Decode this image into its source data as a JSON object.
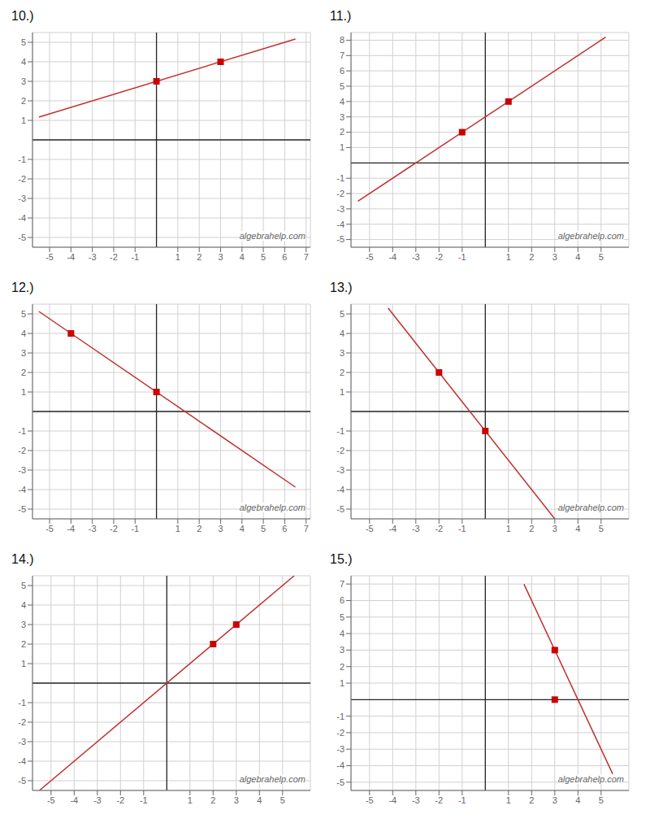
{
  "chart_data": [
    {
      "type": "line",
      "title": "10.)",
      "annotation": "algebrahelp.com",
      "grid": true,
      "xlim": [
        -5.8,
        7.2
      ],
      "ylim": [
        -5.5,
        5.5
      ],
      "xticks": [
        -5,
        -4,
        -3,
        -2,
        -1,
        1,
        2,
        3,
        4,
        5,
        6,
        7
      ],
      "yticks": [
        -5,
        -4,
        -3,
        -2,
        -1,
        1,
        2,
        3,
        4,
        5
      ],
      "series": [
        {
          "type": "line",
          "color": "#c03030",
          "x": [
            -5.5,
            6.5
          ],
          "values": [
            1.16685,
            5.16645
          ]
        },
        {
          "type": "scatter",
          "color": "#cc0000",
          "marker": "square",
          "x": [
            0,
            3
          ],
          "values": [
            3,
            4
          ]
        }
      ]
    },
    {
      "type": "line",
      "title": "11.)",
      "annotation": "algebrahelp.com",
      "grid": true,
      "xlim": [
        -5.8,
        6.2
      ],
      "ylim": [
        -5.5,
        8.5
      ],
      "xticks": [
        -5,
        -4,
        -3,
        -2,
        -1,
        1,
        2,
        3,
        4,
        5
      ],
      "yticks": [
        -5,
        -4,
        -3,
        -2,
        -1,
        1,
        2,
        3,
        4,
        5,
        6,
        7,
        8
      ],
      "series": [
        {
          "type": "line",
          "color": "#c03030",
          "x": [
            -5.5,
            5.2
          ],
          "values": [
            -2.5,
            8.2
          ]
        },
        {
          "type": "scatter",
          "color": "#cc0000",
          "marker": "square",
          "x": [
            -1,
            1
          ],
          "values": [
            2,
            4
          ]
        }
      ]
    },
    {
      "type": "line",
      "title": "12.)",
      "annotation": "algebrahelp.com",
      "grid": true,
      "xlim": [
        -5.8,
        7.2
      ],
      "ylim": [
        -5.5,
        5.5
      ],
      "xticks": [
        -5,
        -4,
        -3,
        -2,
        -1,
        1,
        2,
        3,
        4,
        5,
        6,
        7
      ],
      "yticks": [
        -5,
        -4,
        -3,
        -2,
        -1,
        1,
        2,
        3,
        4,
        5
      ],
      "series": [
        {
          "type": "line",
          "color": "#c03030",
          "x": [
            -5.5,
            6.5
          ],
          "values": [
            5.125,
            -3.875
          ]
        },
        {
          "type": "scatter",
          "color": "#cc0000",
          "marker": "square",
          "x": [
            -4,
            0
          ],
          "values": [
            4,
            1
          ]
        }
      ]
    },
    {
      "type": "line",
      "title": "13.)",
      "annotation": "algebrahelp.com",
      "grid": true,
      "xlim": [
        -5.8,
        6.2
      ],
      "ylim": [
        -5.5,
        5.5
      ],
      "xticks": [
        -5,
        -4,
        -3,
        -2,
        -1,
        1,
        2,
        3,
        4,
        5
      ],
      "yticks": [
        -5,
        -4,
        -3,
        -2,
        -1,
        1,
        2,
        3,
        4,
        5
      ],
      "series": [
        {
          "type": "line",
          "color": "#c03030",
          "x": [
            -4.2,
            3.0
          ],
          "values": [
            5.3,
            -5.5
          ]
        },
        {
          "type": "scatter",
          "color": "#cc0000",
          "marker": "square",
          "x": [
            -2,
            0
          ],
          "values": [
            2,
            -1
          ]
        }
      ]
    },
    {
      "type": "line",
      "title": "14.)",
      "annotation": "algebrahelp.com",
      "grid": true,
      "xlim": [
        -5.8,
        6.2
      ],
      "ylim": [
        -5.5,
        5.5
      ],
      "xticks": [
        -5,
        -4,
        -3,
        -2,
        -1,
        1,
        2,
        3,
        4,
        5
      ],
      "yticks": [
        -5,
        -4,
        -3,
        -2,
        -1,
        1,
        2,
        3,
        4,
        5
      ],
      "series": [
        {
          "type": "line",
          "color": "#c03030",
          "x": [
            -5.5,
            5.5
          ],
          "values": [
            -5.5,
            5.5
          ]
        },
        {
          "type": "scatter",
          "color": "#cc0000",
          "marker": "square",
          "x": [
            2,
            3
          ],
          "values": [
            2,
            3
          ]
        }
      ]
    },
    {
      "type": "line",
      "title": "15.)",
      "annotation": "algebrahelp.com",
      "grid": true,
      "xlim": [
        -5.8,
        6.2
      ],
      "ylim": [
        -5.5,
        7.5
      ],
      "xticks": [
        -5,
        -4,
        -3,
        -2,
        -1,
        1,
        2,
        3,
        4,
        5
      ],
      "yticks": [
        -5,
        -4,
        -3,
        -2,
        -1,
        1,
        2,
        3,
        4,
        5,
        6,
        7
      ],
      "series": [
        {
          "type": "line",
          "color": "#c03030",
          "x": [
            1.67,
            5.5
          ],
          "values": [
            6.99,
            -4.5
          ]
        },
        {
          "type": "scatter",
          "color": "#cc0000",
          "marker": "square",
          "x": [
            3,
            3
          ],
          "values": [
            3,
            0
          ]
        }
      ]
    }
  ]
}
